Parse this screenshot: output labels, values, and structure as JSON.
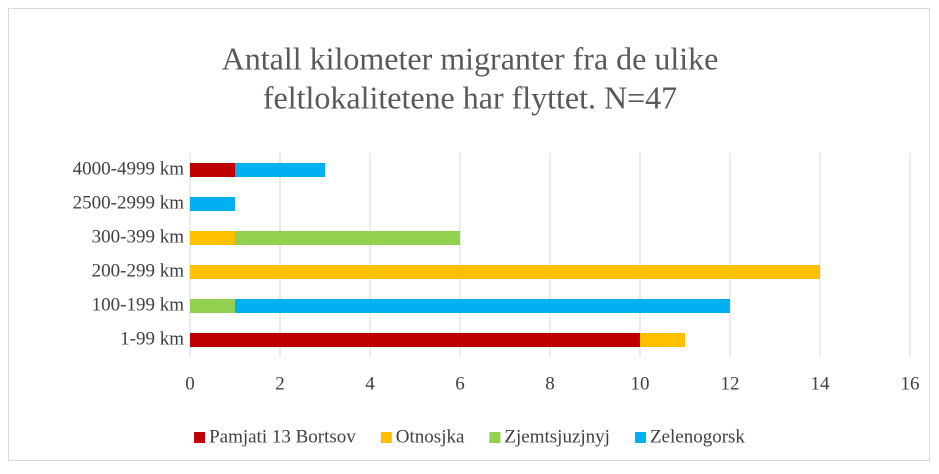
{
  "chart_data": {
    "type": "stacked_barh",
    "title": [
      "Antall kilometer migranter fra de ulike",
      "feltlokalitetene har flyttet. N=47"
    ],
    "categories": [
      "4000-4999 km",
      "2500-2999 km",
      "300-399 km",
      "200-299 km",
      "100-199 km",
      "1-99 km"
    ],
    "series": [
      {
        "name": "Pamjati 13 Bortsov",
        "color": "#c00000",
        "values": [
          1,
          0,
          0,
          0,
          0,
          10
        ]
      },
      {
        "name": "Otnosjka",
        "color": "#ffc000",
        "values": [
          0,
          0,
          1,
          14,
          0,
          1
        ]
      },
      {
        "name": "Zjemtsjuzjnyj",
        "color": "#92d050",
        "values": [
          0,
          0,
          5,
          0,
          1,
          0
        ]
      },
      {
        "name": "Zelenogorsk",
        "color": "#00b0f0",
        "values": [
          2,
          1,
          0,
          0,
          11,
          0
        ]
      }
    ],
    "xlim": [
      0,
      16
    ],
    "xticks": [
      0,
      2,
      4,
      6,
      8,
      10,
      12,
      14,
      16
    ],
    "grid": true,
    "legend": "bottom"
  }
}
